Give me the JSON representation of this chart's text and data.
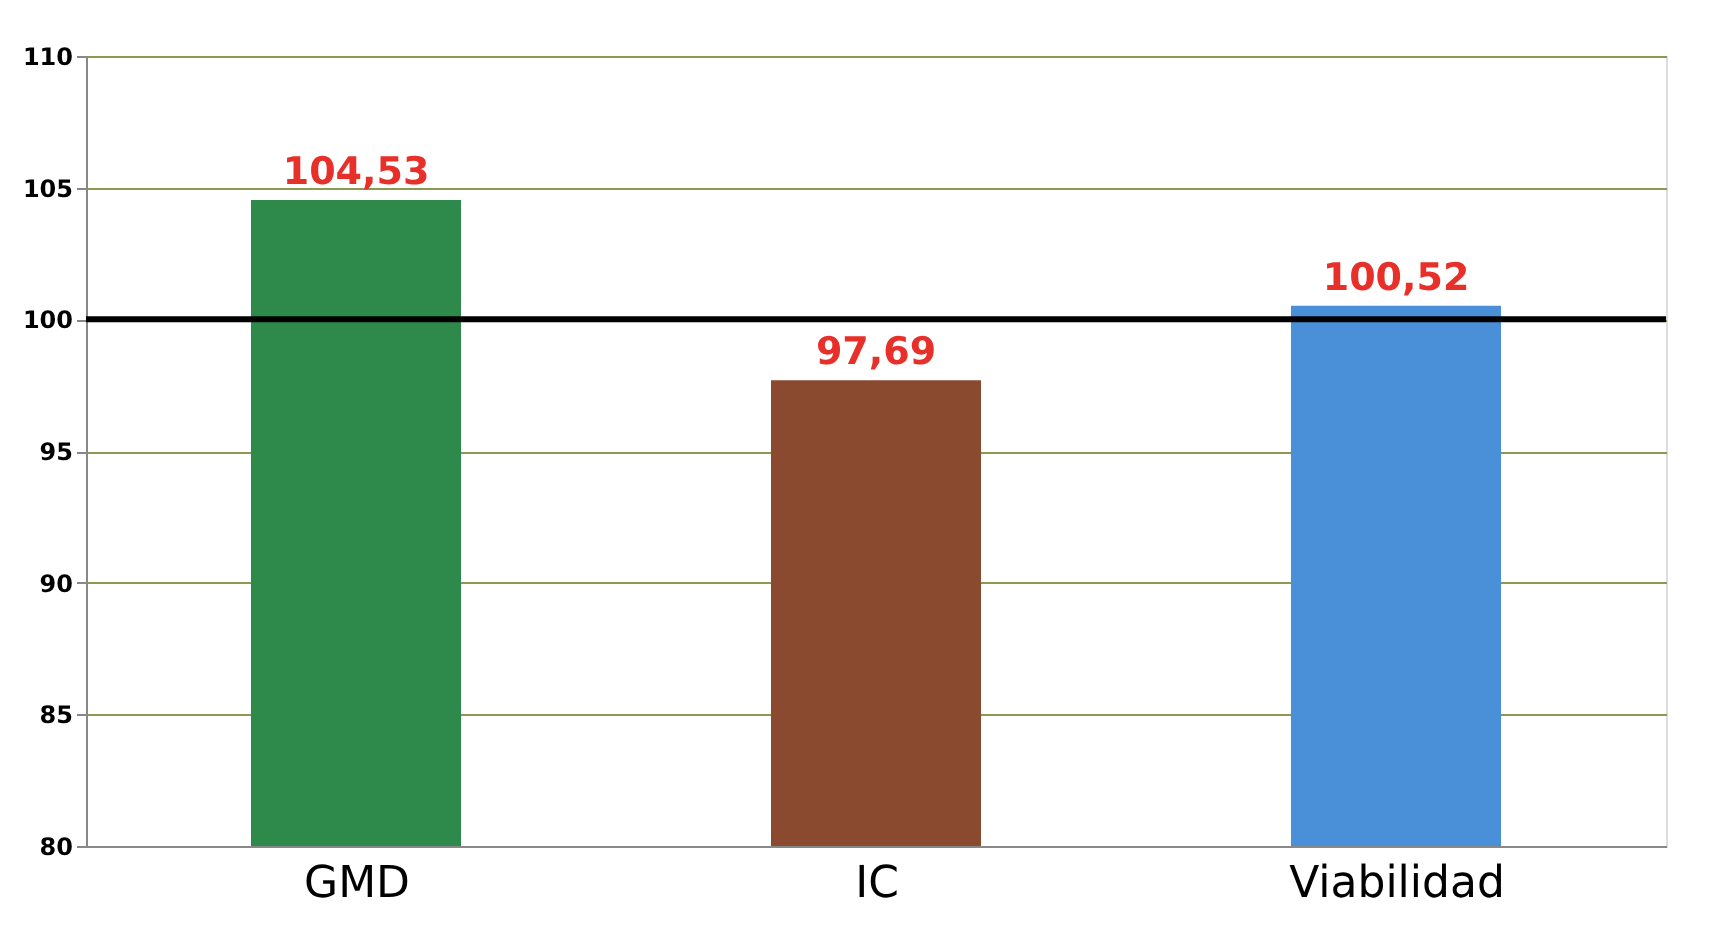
{
  "chart_data": {
    "type": "bar",
    "categories": [
      "GMD",
      "IC",
      "Viabilidad"
    ],
    "values": [
      104.53,
      97.69,
      100.52
    ],
    "colors": [
      "#2e8a4a",
      "#8a4a30",
      "#4a90d8"
    ],
    "value_labels": [
      "104,53",
      "97,69",
      "100,52"
    ],
    "ylim": [
      80,
      110
    ],
    "yticks": [
      80,
      85,
      90,
      95,
      100,
      105,
      110
    ],
    "grid": "y",
    "ref_lines": [
      {
        "axis": "y",
        "value": 100,
        "color": "#000000"
      }
    ]
  }
}
